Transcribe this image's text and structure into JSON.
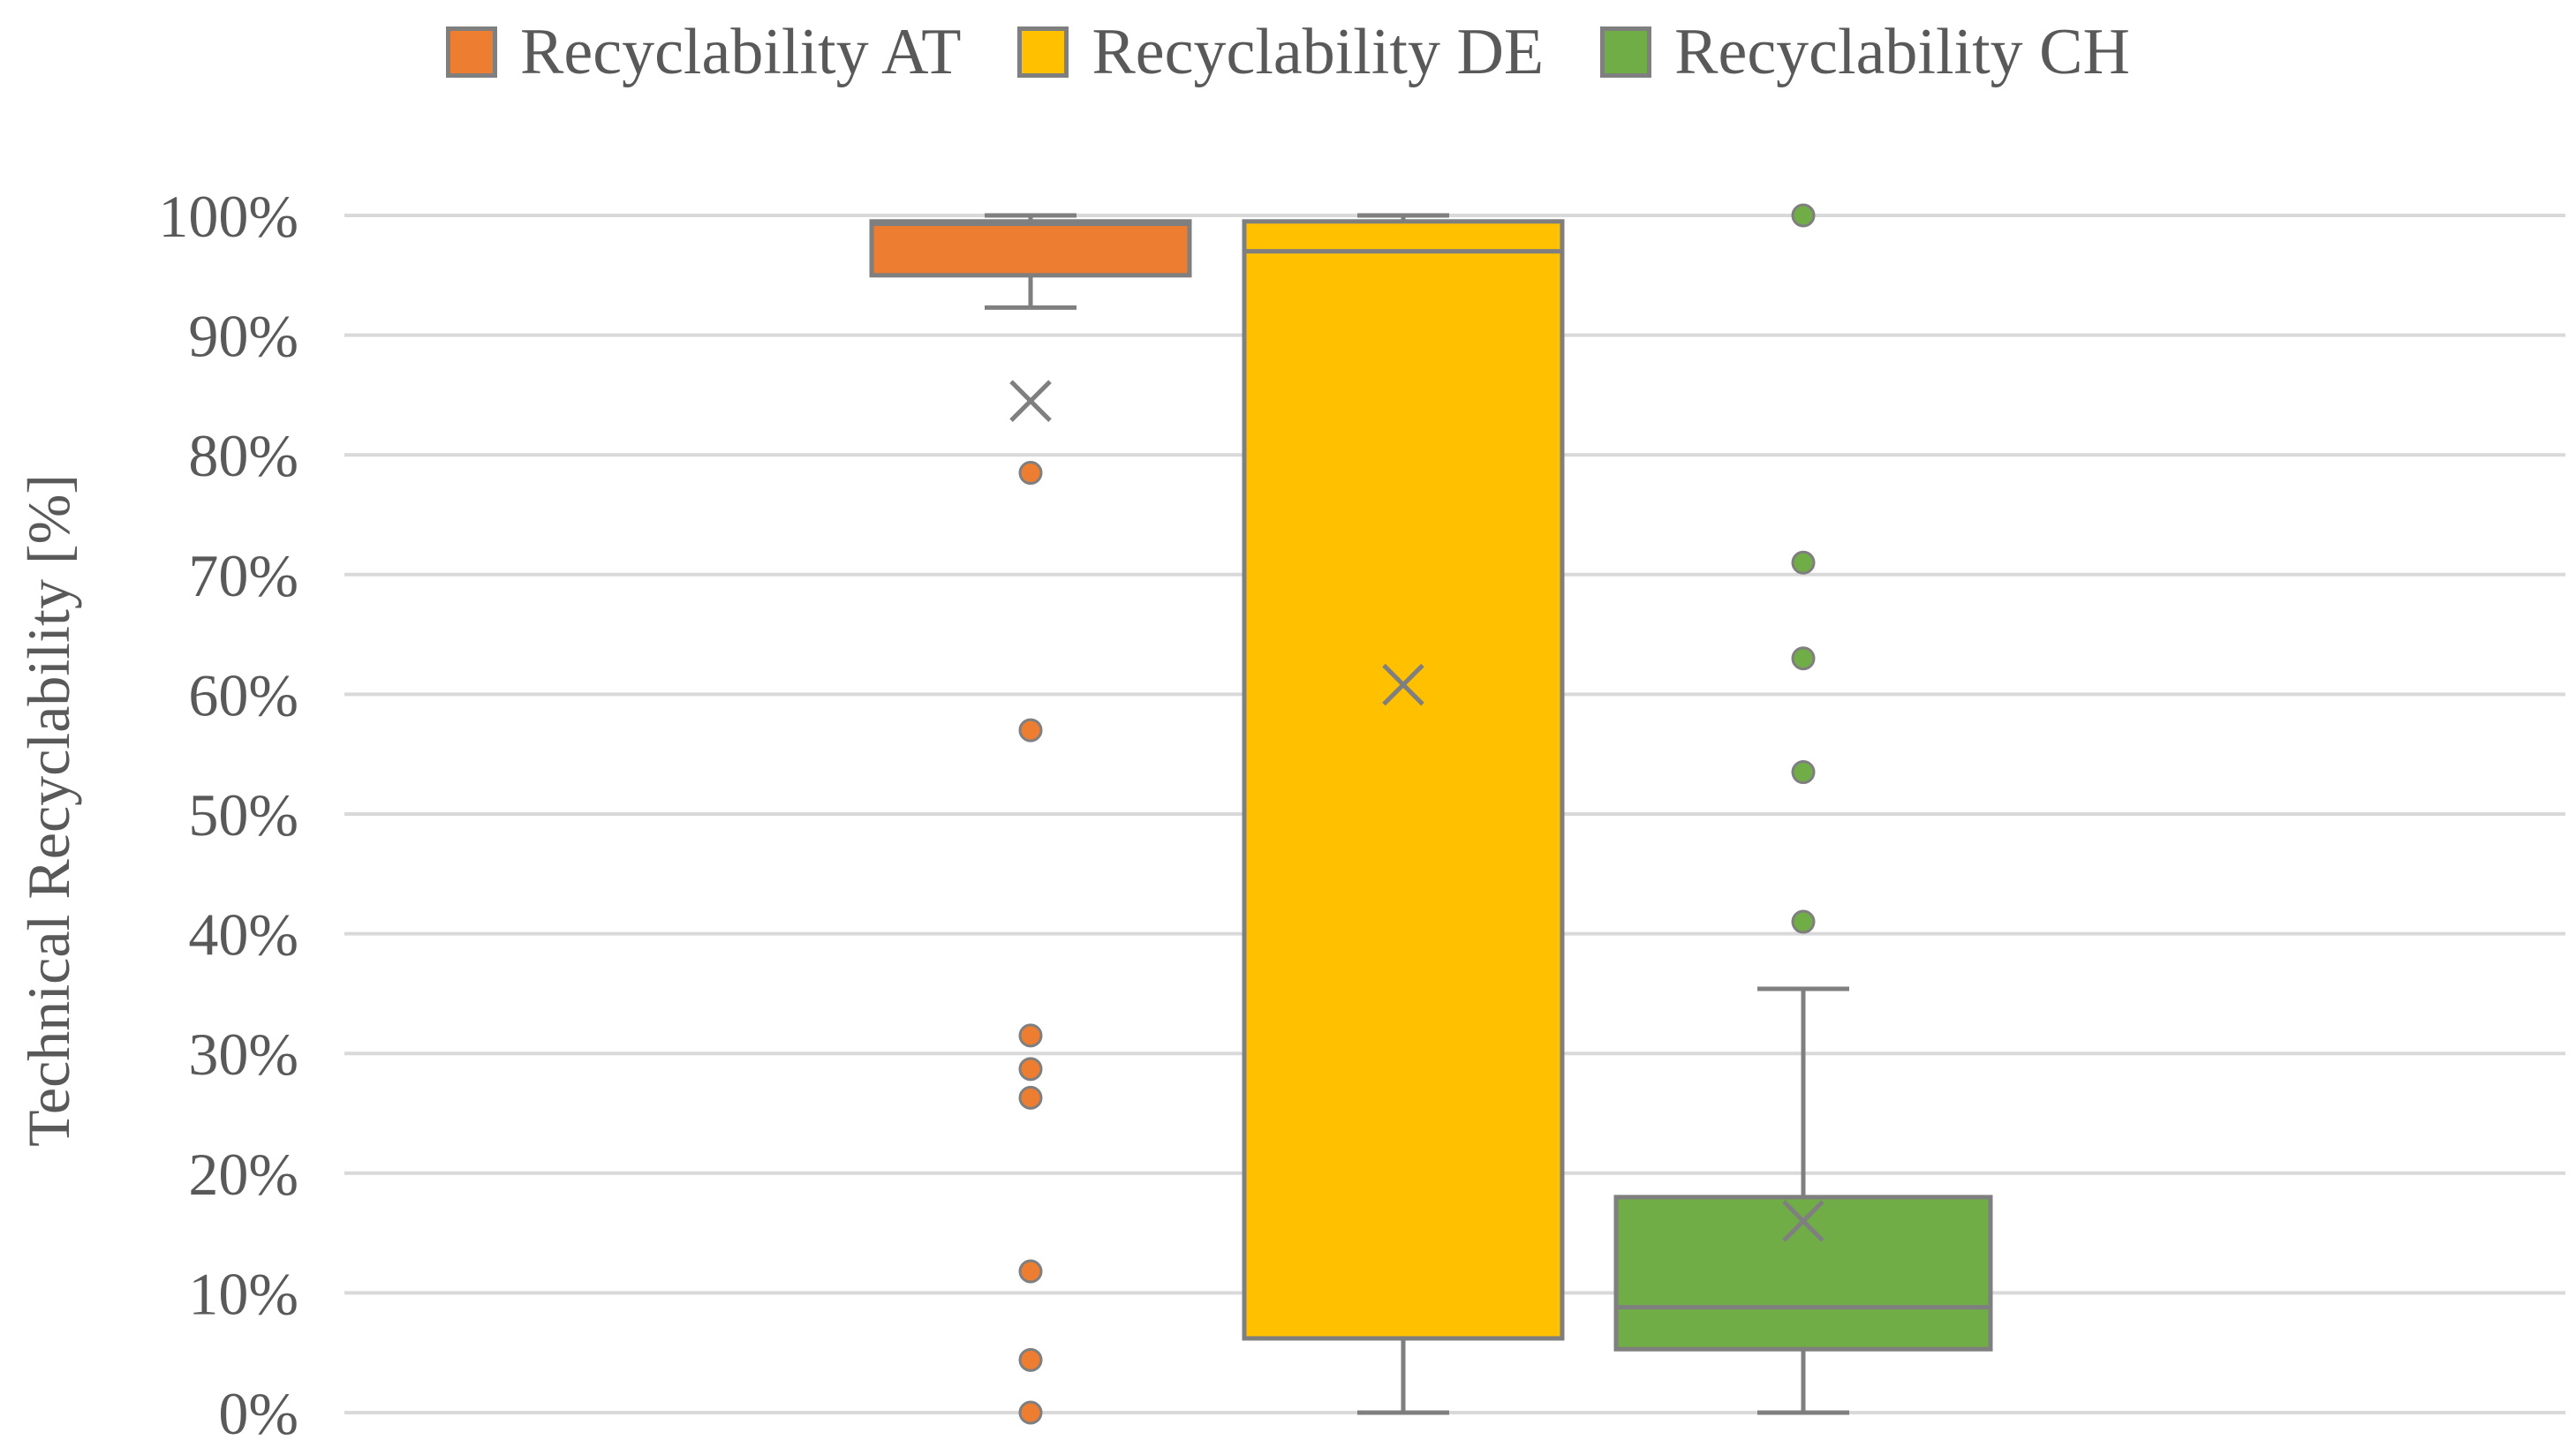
{
  "chart_data": {
    "type": "boxplot",
    "title": "",
    "xlabel": "",
    "ylabel": "Technical Recyclability [%]",
    "ylim": [
      0,
      100
    ],
    "yticks": [
      0,
      10,
      20,
      30,
      40,
      50,
      60,
      70,
      80,
      90,
      100
    ],
    "ytick_labels": [
      "0%",
      "10%",
      "20%",
      "30%",
      "40%",
      "50%",
      "60%",
      "70%",
      "80%",
      "90%",
      "100%"
    ],
    "grid": true,
    "legend_position": "top-center",
    "series": [
      {
        "name": "Recyclability AT",
        "color": "#ED7D31",
        "whisker_low": 92.3,
        "q1": 95.0,
        "median": 99.3,
        "q3": 99.5,
        "whisker_high": 100,
        "mean": 84.5,
        "outliers": [
          78.5,
          57.0,
          31.5,
          28.7,
          26.3,
          11.8,
          4.4,
          0.0
        ]
      },
      {
        "name": "Recyclability DE",
        "color": "#FFC000",
        "whisker_low": 0,
        "q1": 6.2,
        "median": 97.0,
        "q3": 99.5,
        "whisker_high": 100,
        "mean": 60.8,
        "outliers": []
      },
      {
        "name": "Recyclability CH",
        "color": "#70AD47",
        "whisker_low": 0,
        "q1": 5.3,
        "median": 8.8,
        "q3": 18.0,
        "whisker_high": 35.4,
        "mean": 16.0,
        "outliers": [
          100.0,
          71.0,
          63.0,
          53.5,
          41.0
        ]
      }
    ]
  }
}
